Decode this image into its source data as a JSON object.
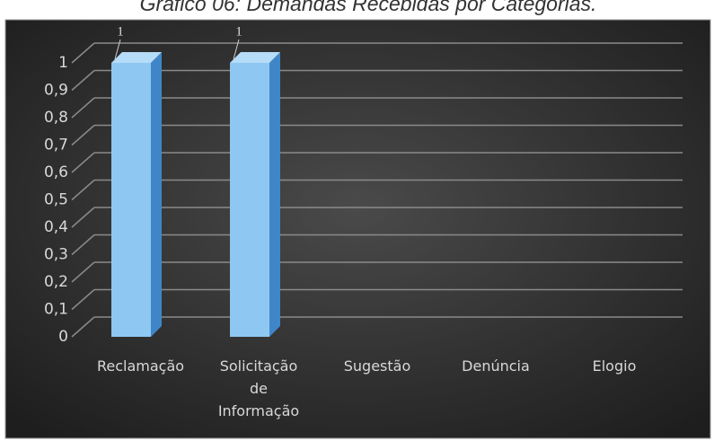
{
  "chart_data": {
    "type": "bar3d",
    "title": "Gráfico 06: Demandas Recebidas por Categorias.",
    "categories": [
      "Reclamação",
      "Solicitação de Informação",
      "Sugestão",
      "Denúncia",
      "Elogio"
    ],
    "values": [
      1,
      1,
      0,
      0,
      0
    ],
    "color": "#8ec8f2",
    "ylim": [
      0,
      1
    ],
    "yticks": [
      0,
      {
        "value": 0.1,
        "label": "0,1"
      },
      {
        "value": 0.2,
        "label": "0,2"
      },
      {
        "value": 0.3,
        "label": "0,3"
      },
      {
        "value": 0.4,
        "label": "0,4"
      },
      {
        "value": 0.5,
        "label": "0,5"
      },
      {
        "value": 0.6,
        "label": "0,6"
      },
      {
        "value": 0.7,
        "label": "0,7"
      },
      {
        "value": 0.8,
        "label": "0,8"
      },
      {
        "value": 0.9,
        "label": "0,9"
      },
      1
    ],
    "grid": true
  }
}
